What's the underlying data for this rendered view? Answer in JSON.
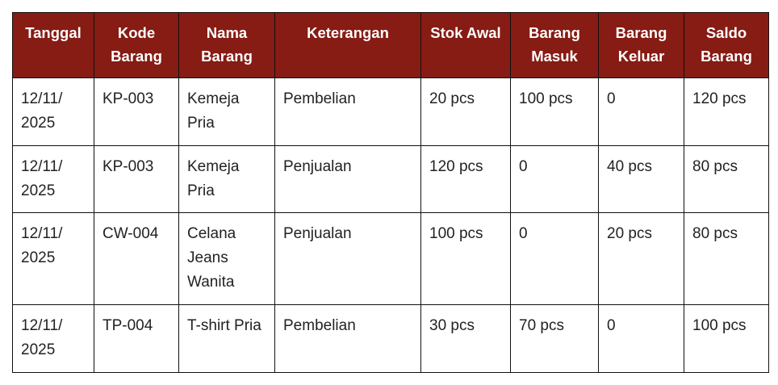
{
  "header_color": "#861c14",
  "columns": [
    "Tanggal",
    "Kode Barang",
    "Nama Barang",
    "Keterangan",
    "Stok Awal",
    "Barang Masuk",
    "Barang Keluar",
    "Saldo Barang"
  ],
  "rows": [
    [
      "12/11/ 2025",
      "KP-003",
      "Kemeja Pria",
      "Pembelian",
      "20 pcs",
      "100 pcs",
      "0",
      "120 pcs"
    ],
    [
      "12/11/ 2025",
      "KP-003",
      "Kemeja Pria",
      "Penjualan",
      "120 pcs",
      "0",
      "40 pcs",
      "80 pcs"
    ],
    [
      "12/11/ 2025",
      "CW-004",
      "Celana Jeans Wanita",
      "Penjualan",
      "100 pcs",
      "0",
      "20 pcs",
      "80 pcs"
    ],
    [
      "12/11/ 2025",
      "TP-004",
      "T-shirt Pria",
      "Pembelian",
      "30 pcs",
      "70 pcs",
      "0",
      "100 pcs"
    ]
  ]
}
